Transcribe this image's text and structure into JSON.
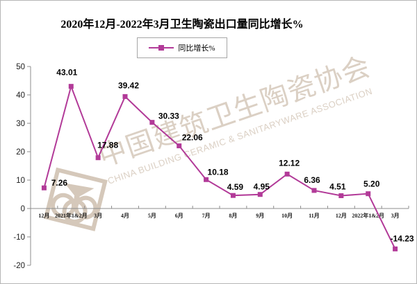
{
  "title": "2020年12月-2022年3月卫生陶瓷出口量同比增长%",
  "legend": {
    "label": "同比增长%"
  },
  "watermark": {
    "cn": "中国建筑卫生陶瓷协会",
    "en": "CHINA BUILDING CERAMIC & SANITARYWARE ASSOCIATION"
  },
  "colors": {
    "line": "#b23a98",
    "axis": "#8c8c8c",
    "tick_text": "#1a1a1a",
    "data_label": "#000000",
    "watermark": "#d5c8ba",
    "frame_border": "#b6b6b6"
  },
  "chart_data": {
    "type": "line",
    "title": "2020年12月-2022年3月卫生陶瓷出口量同比增长%",
    "categories": [
      "12月",
      "2021年1&2月",
      "3月",
      "4月",
      "5月",
      "6月",
      "7月",
      "8月",
      "9月",
      "10月",
      "11月",
      "12月",
      "2022年1&2月",
      "3月"
    ],
    "series": [
      {
        "name": "同比增长%",
        "values": [
          7.26,
          43.01,
          17.88,
          39.42,
          30.33,
          22.06,
          10.18,
          4.59,
          4.95,
          12.12,
          6.36,
          4.51,
          5.2,
          -14.23
        ]
      }
    ],
    "xlabel": "",
    "ylabel": "",
    "ylim": [
      -20,
      50
    ],
    "yticks": [
      50,
      40,
      30,
      20,
      10,
      0,
      -10,
      -20
    ],
    "grid": false,
    "legend_position": "top",
    "marker": "square",
    "data_labels_visible": true
  }
}
